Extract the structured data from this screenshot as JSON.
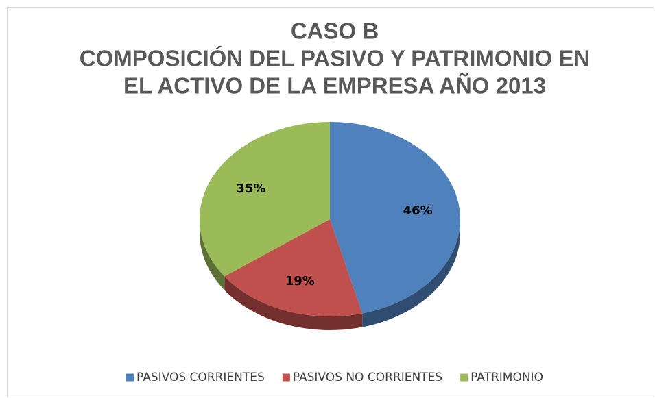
{
  "chart_data": {
    "type": "pie",
    "title": [
      "CASO B",
      "COMPOSICIÓN DEL PASIVO Y PATRIMONIO EN",
      "EL ACTIVO DE LA EMPRESA AÑO 2013"
    ],
    "categories": [
      "PASIVOS CORRIENTES",
      "PASIVOS NO CORRIENTES",
      "PATRIMONIO"
    ],
    "values": [
      46,
      19,
      35
    ],
    "value_labels": [
      "46%",
      "19%",
      "35%"
    ],
    "colors": [
      "#4f81bd",
      "#c0504d",
      "#9bbb59"
    ],
    "legend": "bottom"
  }
}
